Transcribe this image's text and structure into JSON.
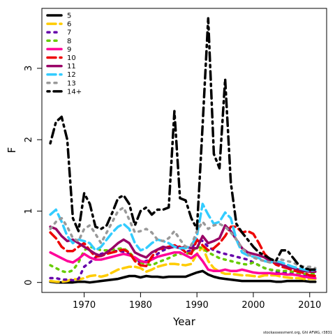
{
  "chart_data": {
    "type": "line",
    "title": "",
    "xlabel": "Year",
    "ylabel": "F",
    "xlim": [
      1962.5,
      2013
    ],
    "ylim": [
      -0.14,
      3.84
    ],
    "x_ticks": [
      1970,
      1980,
      1990,
      2000,
      2010
    ],
    "y_ticks": [
      0,
      1,
      2,
      3
    ],
    "legend_position": "top-left",
    "credit": "stockassessment.org, Ghl  AFWG, r3831",
    "x": [
      1964,
      1965,
      1966,
      1967,
      1968,
      1969,
      1970,
      1971,
      1972,
      1973,
      1974,
      1975,
      1976,
      1977,
      1978,
      1979,
      1980,
      1981,
      1982,
      1983,
      1984,
      1985,
      1986,
      1987,
      1988,
      1989,
      1990,
      1991,
      1992,
      1993,
      1994,
      1995,
      1996,
      1997,
      1998,
      1999,
      2000,
      2001,
      2002,
      2003,
      2004,
      2005,
      2006,
      2007,
      2008,
      2009,
      2010,
      2011
    ],
    "series": [
      {
        "name": "5",
        "color": "#000000",
        "dash": "solid",
        "values": [
          0.01,
          0.0,
          0.0,
          0.0,
          0.0,
          0.01,
          0.01,
          0.0,
          0.01,
          0.02,
          0.03,
          0.04,
          0.05,
          0.07,
          0.09,
          0.09,
          0.07,
          0.09,
          0.08,
          0.08,
          0.07,
          0.08,
          0.08,
          0.08,
          0.08,
          0.11,
          0.14,
          0.16,
          0.11,
          0.08,
          0.06,
          0.05,
          0.04,
          0.03,
          0.02,
          0.02,
          0.02,
          0.02,
          0.02,
          0.02,
          0.01,
          0.01,
          0.02,
          0.02,
          0.02,
          0.02,
          0.01,
          0.01
        ]
      },
      {
        "name": "6",
        "color": "#ffcc00",
        "dash": "dashed",
        "values": [
          0.02,
          0.01,
          0.01,
          0.02,
          0.05,
          0.04,
          0.06,
          0.09,
          0.1,
          0.08,
          0.1,
          0.14,
          0.18,
          0.2,
          0.22,
          0.22,
          0.2,
          0.15,
          0.18,
          0.22,
          0.24,
          0.26,
          0.26,
          0.25,
          0.24,
          0.26,
          0.4,
          0.5,
          0.3,
          0.2,
          0.15,
          0.12,
          0.12,
          0.11,
          0.1,
          0.1,
          0.09,
          0.08,
          0.1,
          0.1,
          0.1,
          0.08,
          0.07,
          0.06,
          0.06,
          0.05,
          0.05,
          0.05
        ]
      },
      {
        "name": "7",
        "color": "#6600aa",
        "dash": "dotted",
        "values": [
          0.06,
          0.06,
          0.04,
          0.04,
          0.03,
          0.05,
          0.22,
          0.28,
          0.35,
          0.4,
          0.42,
          0.44,
          0.44,
          0.43,
          0.4,
          0.32,
          0.28,
          0.3,
          0.32,
          0.4,
          0.45,
          0.48,
          0.52,
          0.48,
          0.43,
          0.45,
          0.62,
          0.58,
          0.5,
          0.45,
          0.42,
          0.4,
          0.38,
          0.36,
          0.34,
          0.32,
          0.28,
          0.24,
          0.2,
          0.18,
          0.15,
          0.14,
          0.13,
          0.12,
          0.12,
          0.11,
          0.1,
          0.1
        ]
      },
      {
        "name": "8",
        "color": "#66cc00",
        "dash": "dotted",
        "values": [
          0.24,
          0.2,
          0.16,
          0.14,
          0.17,
          0.28,
          0.45,
          0.5,
          0.48,
          0.45,
          0.45,
          0.46,
          0.47,
          0.48,
          0.42,
          0.34,
          0.28,
          0.26,
          0.24,
          0.28,
          0.31,
          0.34,
          0.38,
          0.4,
          0.4,
          0.42,
          0.5,
          0.48,
          0.42,
          0.38,
          0.34,
          0.32,
          0.3,
          0.28,
          0.26,
          0.25,
          0.28,
          0.24,
          0.2,
          0.18,
          0.17,
          0.16,
          0.16,
          0.15,
          0.13,
          0.12,
          0.12,
          0.12
        ]
      },
      {
        "name": "9",
        "color": "#ff0099",
        "dash": "solid",
        "values": [
          0.42,
          0.38,
          0.34,
          0.3,
          0.28,
          0.33,
          0.4,
          0.35,
          0.32,
          0.32,
          0.34,
          0.36,
          0.38,
          0.4,
          0.38,
          0.35,
          0.3,
          0.28,
          0.32,
          0.36,
          0.38,
          0.4,
          0.42,
          0.42,
          0.38,
          0.34,
          0.4,
          0.3,
          0.18,
          0.16,
          0.16,
          0.18,
          0.16,
          0.16,
          0.18,
          0.16,
          0.14,
          0.13,
          0.13,
          0.13,
          0.12,
          0.12,
          0.11,
          0.11,
          0.1,
          0.08,
          0.07,
          0.06
        ]
      },
      {
        "name": "10",
        "color": "#ee0000",
        "dash": "dashed",
        "values": [
          0.7,
          0.62,
          0.5,
          0.44,
          0.44,
          0.5,
          0.55,
          0.45,
          0.36,
          0.37,
          0.4,
          0.42,
          0.44,
          0.46,
          0.42,
          0.3,
          0.24,
          0.23,
          0.36,
          0.46,
          0.48,
          0.5,
          0.52,
          0.5,
          0.42,
          0.4,
          0.6,
          0.52,
          0.45,
          0.48,
          0.55,
          0.65,
          0.78,
          0.78,
          0.7,
          0.72,
          0.68,
          0.55,
          0.4,
          0.32,
          0.25,
          0.22,
          0.2,
          0.17,
          0.15,
          0.13,
          0.1,
          0.09
        ]
      },
      {
        "name": "11",
        "color": "#990066",
        "dash": "solid",
        "values": [
          0.78,
          0.75,
          0.65,
          0.58,
          0.6,
          0.55,
          0.5,
          0.45,
          0.4,
          0.37,
          0.42,
          0.48,
          0.55,
          0.6,
          0.55,
          0.42,
          0.38,
          0.35,
          0.42,
          0.46,
          0.5,
          0.48,
          0.5,
          0.48,
          0.5,
          0.48,
          0.48,
          0.65,
          0.55,
          0.58,
          0.62,
          0.8,
          0.72,
          0.6,
          0.48,
          0.42,
          0.4,
          0.38,
          0.35,
          0.3,
          0.28,
          0.25,
          0.22,
          0.2,
          0.18,
          0.16,
          0.15,
          0.15
        ]
      },
      {
        "name": "12",
        "color": "#33ccff",
        "dash": "dashed",
        "values": [
          0.95,
          1.02,
          0.85,
          0.65,
          0.55,
          0.6,
          0.58,
          0.55,
          0.45,
          0.5,
          0.6,
          0.7,
          0.78,
          0.82,
          0.75,
          0.55,
          0.45,
          0.48,
          0.55,
          0.6,
          0.58,
          0.55,
          0.5,
          0.48,
          0.48,
          0.52,
          0.65,
          1.1,
          0.95,
          0.82,
          0.85,
          0.98,
          0.9,
          0.6,
          0.42,
          0.38,
          0.36,
          0.34,
          0.3,
          0.28,
          0.3,
          0.28,
          0.25,
          0.22,
          0.2,
          0.18,
          0.16,
          0.18
        ]
      },
      {
        "name": "13",
        "color": "#999999",
        "dash": "dotted",
        "values": [
          0.75,
          0.85,
          0.9,
          0.78,
          0.62,
          0.58,
          0.75,
          0.8,
          0.68,
          0.55,
          0.7,
          0.85,
          1.0,
          1.05,
          0.88,
          0.7,
          0.72,
          0.75,
          0.7,
          0.6,
          0.58,
          0.62,
          0.72,
          0.6,
          0.5,
          0.52,
          0.72,
          0.85,
          0.75,
          0.8,
          0.82,
          0.78,
          0.7,
          0.6,
          0.48,
          0.4,
          0.35,
          0.32,
          0.3,
          0.28,
          0.3,
          0.32,
          0.3,
          0.28,
          0.24,
          0.22,
          0.22,
          0.2
        ]
      },
      {
        "name": "14+",
        "color": "#000000",
        "dash": "dashdot",
        "values": [
          1.95,
          2.25,
          2.32,
          2.0,
          0.9,
          0.72,
          1.25,
          1.1,
          0.78,
          0.75,
          0.8,
          0.98,
          1.18,
          1.22,
          1.1,
          0.8,
          1.0,
          1.05,
          0.95,
          1.02,
          1.02,
          1.05,
          2.4,
          1.18,
          1.15,
          0.9,
          0.75,
          2.2,
          3.7,
          1.8,
          1.6,
          2.85,
          1.4,
          0.82,
          0.7,
          0.6,
          0.5,
          0.42,
          0.38,
          0.33,
          0.3,
          0.45,
          0.45,
          0.35,
          0.25,
          0.2,
          0.18,
          0.18
        ]
      }
    ]
  }
}
